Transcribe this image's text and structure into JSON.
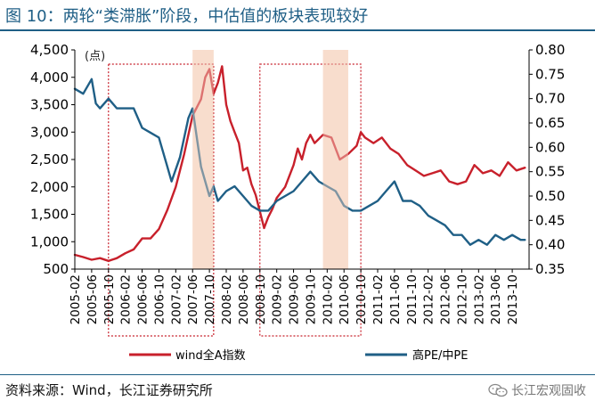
{
  "header": {
    "title": "图 10：两轮“类滞胀”阶段，中估值的板块表现较好"
  },
  "footer": {
    "source": "资料来源：Wind，长江证券研究所",
    "brand": "长江宏观固收",
    "brand_icon": "wechat-icon"
  },
  "colors": {
    "title": "#1f5f86",
    "wind_a": "#c8202b",
    "high_pe": "#1f5f86",
    "shade": "#f7d8c6",
    "box": "#c8202b"
  },
  "chart_data": {
    "type": "line",
    "title": "",
    "xlabel": "",
    "ylabel_left": "(点)",
    "ylabel_right": "",
    "ylim_left": [
      500,
      4500
    ],
    "ylim_right": [
      0.35,
      0.8
    ],
    "yticks_left": [
      "4,500",
      "4,000",
      "3,500",
      "3,000",
      "2,500",
      "2,000",
      "1,500",
      "1,000",
      "500"
    ],
    "yticks_right": [
      "0.80",
      "0.75",
      "0.70",
      "0.65",
      "0.60",
      "0.55",
      "0.50",
      "0.45",
      "0.40",
      "0.35"
    ],
    "x_ticks": [
      "2005-02",
      "2005-06",
      "2005-10",
      "2006-02",
      "2006-06",
      "2006-10",
      "2007-02",
      "2007-06",
      "2007-10",
      "2008-02",
      "2008-06",
      "2008-10",
      "2009-02",
      "2009-06",
      "2009-10",
      "2010-02",
      "2010-06",
      "2010-10",
      "2011-02",
      "2011-06",
      "2011-10",
      "2012-02",
      "2012-06",
      "2012-10",
      "2013-02",
      "2013-06",
      "2013-10"
    ],
    "grid": false,
    "legend_position": "bottom",
    "shaded_periods": [
      {
        "start": "2007-06",
        "end": "2007-11"
      },
      {
        "start": "2010-01",
        "end": "2010-07"
      }
    ],
    "boxed_periods": [
      {
        "start": "2005-10",
        "end": "2007-11"
      },
      {
        "start": "2008-10",
        "end": "2010-10"
      }
    ],
    "series": [
      {
        "name": "wind全A指数",
        "axis": "left",
        "color": "#c8202b",
        "x": [
          "2005-02",
          "2005-04",
          "2005-06",
          "2005-08",
          "2005-10",
          "2005-12",
          "2006-02",
          "2006-04",
          "2006-06",
          "2006-08",
          "2006-10",
          "2006-12",
          "2007-02",
          "2007-04",
          "2007-06",
          "2007-08",
          "2007-09",
          "2007-10",
          "2007-11",
          "2007-12",
          "2008-01",
          "2008-02",
          "2008-03",
          "2008-04",
          "2008-05",
          "2008-06",
          "2008-07",
          "2008-08",
          "2008-09",
          "2008-10",
          "2008-11",
          "2008-12",
          "2009-01",
          "2009-02",
          "2009-04",
          "2009-06",
          "2009-07",
          "2009-08",
          "2009-09",
          "2009-10",
          "2009-11",
          "2010-01",
          "2010-03",
          "2010-05",
          "2010-07",
          "2010-09",
          "2010-10",
          "2010-11",
          "2011-01",
          "2011-03",
          "2011-05",
          "2011-07",
          "2011-09",
          "2011-11",
          "2012-01",
          "2012-03",
          "2012-05",
          "2012-07",
          "2012-09",
          "2012-11",
          "2013-01",
          "2013-03",
          "2013-05",
          "2013-07",
          "2013-09",
          "2013-11",
          "2014-01"
        ],
        "values": [
          760,
          720,
          670,
          700,
          650,
          700,
          790,
          860,
          1060,
          1060,
          1230,
          1580,
          2000,
          2600,
          3300,
          3600,
          4000,
          4150,
          3700,
          3900,
          4200,
          3500,
          3200,
          3000,
          2800,
          2300,
          2350,
          2050,
          1850,
          1550,
          1250,
          1450,
          1600,
          1800,
          2000,
          2400,
          2700,
          2500,
          2800,
          2950,
          2800,
          2950,
          2900,
          2500,
          2600,
          2750,
          3000,
          2900,
          2800,
          2900,
          2700,
          2600,
          2400,
          2300,
          2200,
          2250,
          2300,
          2100,
          2050,
          2100,
          2400,
          2250,
          2300,
          2200,
          2450,
          2300,
          2350
        ]
      },
      {
        "name": "高PE/中PE",
        "axis": "right",
        "color": "#1f5f86",
        "x": [
          "2005-02",
          "2005-04",
          "2005-06",
          "2005-07",
          "2005-08",
          "2005-10",
          "2005-12",
          "2006-02",
          "2006-04",
          "2006-06",
          "2006-08",
          "2006-10",
          "2006-12",
          "2007-01",
          "2007-03",
          "2007-05",
          "2007-06",
          "2007-08",
          "2007-09",
          "2007-10",
          "2007-11",
          "2007-12",
          "2008-02",
          "2008-04",
          "2008-06",
          "2008-08",
          "2008-10",
          "2008-12",
          "2009-02",
          "2009-04",
          "2009-06",
          "2009-08",
          "2009-10",
          "2009-12",
          "2010-02",
          "2010-04",
          "2010-06",
          "2010-08",
          "2010-10",
          "2010-12",
          "2011-02",
          "2011-04",
          "2011-06",
          "2011-08",
          "2011-10",
          "2011-12",
          "2012-02",
          "2012-04",
          "2012-06",
          "2012-08",
          "2012-10",
          "2012-12",
          "2013-02",
          "2013-04",
          "2013-06",
          "2013-08",
          "2013-10",
          "2013-12",
          "2014-01"
        ],
        "values": [
          0.72,
          0.71,
          0.74,
          0.69,
          0.68,
          0.7,
          0.68,
          0.68,
          0.68,
          0.64,
          0.63,
          0.62,
          0.56,
          0.53,
          0.58,
          0.66,
          0.68,
          0.56,
          0.53,
          0.5,
          0.52,
          0.49,
          0.51,
          0.52,
          0.5,
          0.48,
          0.47,
          0.47,
          0.49,
          0.5,
          0.51,
          0.53,
          0.55,
          0.53,
          0.52,
          0.51,
          0.48,
          0.47,
          0.47,
          0.48,
          0.49,
          0.51,
          0.53,
          0.49,
          0.49,
          0.48,
          0.46,
          0.45,
          0.44,
          0.42,
          0.42,
          0.4,
          0.41,
          0.4,
          0.42,
          0.41,
          0.42,
          0.41,
          0.41
        ]
      }
    ]
  }
}
